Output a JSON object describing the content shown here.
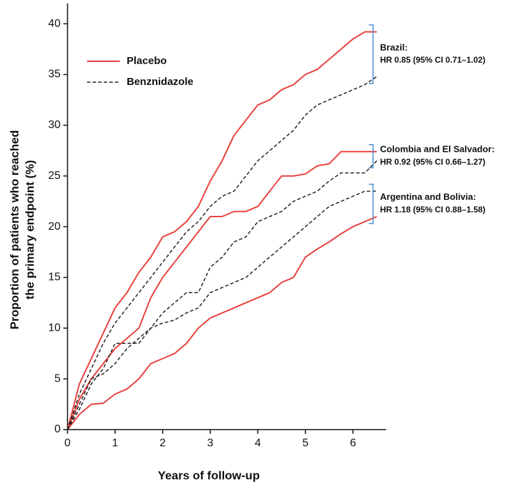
{
  "chart_data": {
    "type": "line",
    "x_label": "Years of follow-up",
    "y_label": [
      "Proportion of patients who reached",
      "the primary endpoint (%)"
    ],
    "xlim": [
      0,
      6.7
    ],
    "ylim": [
      0,
      42
    ],
    "xticks": [
      0,
      1,
      2,
      3,
      4,
      5,
      6
    ],
    "yticks": [
      0,
      5,
      10,
      15,
      20,
      25,
      30,
      35,
      40
    ],
    "x": [
      0,
      0.25,
      0.5,
      0.75,
      1,
      1.25,
      1.5,
      1.75,
      2,
      2.25,
      2.5,
      2.75,
      3,
      3.25,
      3.5,
      3.75,
      4,
      4.25,
      4.5,
      4.75,
      5,
      5.25,
      5.5,
      5.75,
      6,
      6.25,
      6.5
    ],
    "series": [
      {
        "name": "Placebo",
        "color": "#e8413c",
        "dashed": false,
        "curves": [
          {
            "values": [
              0,
              4.5,
              7,
              9.5,
              12,
              13.5,
              15.5,
              17,
              19,
              19.5,
              20.5,
              22,
              24.5,
              26.5,
              29,
              30.5,
              32,
              32.5,
              33.5,
              34,
              35,
              35.5,
              36.5,
              37.5,
              38.5,
              39.2,
              39.2
            ]
          },
          {
            "values": [
              0,
              3,
              5,
              6.5,
              8,
              9,
              10,
              13,
              15,
              16.5,
              18,
              19.5,
              21,
              21,
              21.5,
              21.5,
              22,
              23.5,
              25,
              25,
              25.2,
              26,
              26.2,
              27.4,
              27.4,
              27.4,
              27.4
            ]
          },
          {
            "values": [
              0,
              1.5,
              2.5,
              2.6,
              3.5,
              4,
              5,
              6.5,
              7,
              7.5,
              8.5,
              10,
              11,
              11.5,
              12,
              12.5,
              13,
              13.5,
              14.5,
              15,
              17,
              17.8,
              18.5,
              19.3,
              20,
              20.5,
              21
            ]
          }
        ]
      },
      {
        "name": "Benznidazole",
        "color": "#222222",
        "dashed": true,
        "curves": [
          {
            "values": [
              0,
              3.5,
              6,
              8.5,
              10.5,
              12,
              13.5,
              15,
              16.5,
              18,
              19.5,
              20.5,
              22,
              23,
              23.5,
              25,
              26.5,
              27.5,
              28.5,
              29.5,
              31,
              32,
              32.5,
              33,
              33.5,
              34,
              34.8
            ]
          },
          {
            "values": [
              0,
              2,
              4.5,
              6,
              8.5,
              8.5,
              8.5,
              10,
              11.5,
              12.5,
              13.5,
              13.5,
              16,
              17,
              18.5,
              19,
              20.5,
              21,
              21.5,
              22.5,
              23,
              23.5,
              24.5,
              25.3,
              25.3,
              25.3,
              26.5
            ]
          },
          {
            "values": [
              0,
              2.5,
              5,
              5.5,
              6.5,
              8,
              9,
              10,
              10.5,
              10.8,
              11.5,
              12,
              13.5,
              14,
              14.5,
              15,
              16,
              17,
              18,
              19,
              20,
              21,
              22,
              22.5,
              23,
              23.5,
              23.5
            ]
          }
        ]
      }
    ],
    "groups": [
      {
        "label": "Brazil:",
        "hr": "HR 0.85 (95% CI 0.71–1.02)"
      },
      {
        "label": "Colombia and El Salvador:",
        "hr": "HR 0.92 (95% CI 0.66–1.27)"
      },
      {
        "label": "Argentina and Bolivia:",
        "hr": "HR 1.18 (95% CI 0.88–1.58)"
      }
    ]
  }
}
